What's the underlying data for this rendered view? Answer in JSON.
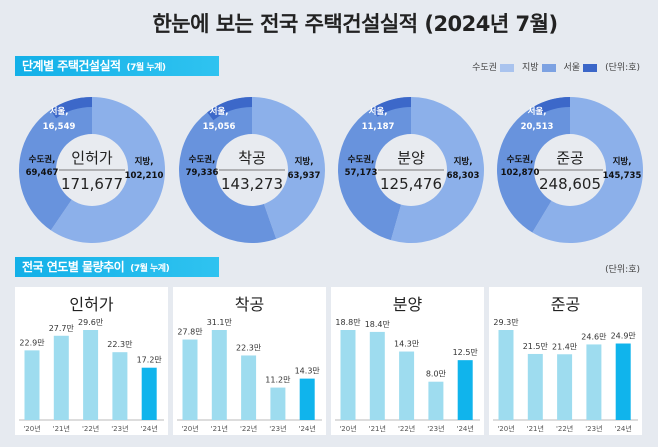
{
  "title": "한눈에 보는 전국 주택건설실적  (2024년 7월)",
  "section1": {
    "label": "단계별 주택건설실적",
    "note": "(7월 누계)"
  },
  "legend": {
    "items": [
      {
        "label": "수도권",
        "color": "#a9c3ee"
      },
      {
        "label": "지방",
        "color": "#7da2e2"
      },
      {
        "label": "서울",
        "color": "#3b66c8"
      }
    ],
    "unit": "(단위:호)"
  },
  "section2": {
    "label": "전국 연도별 물량추이",
    "note": "(7월 누계)",
    "unit": "(단위:호)"
  },
  "colors": {
    "jibang": "#8cb0ea",
    "sudo": "#6893dd",
    "seoul": "#3c68c9",
    "bar": "#9edcef",
    "bar_current": "#10b4ec"
  },
  "chart_data": [
    {
      "type": "pie",
      "variant": "donut",
      "title": "인허가",
      "total": "171,677",
      "slices": [
        {
          "label": "지방,",
          "value": 102210,
          "text": "102,210"
        },
        {
          "label": "수도권,",
          "value": 69467,
          "text": "69,467"
        }
      ],
      "sub_slice": {
        "label": "서울,",
        "value": 16549,
        "text": "16,549",
        "within": "수도권"
      }
    },
    {
      "type": "pie",
      "variant": "donut",
      "title": "착공",
      "total": "143,273",
      "slices": [
        {
          "label": "지방,",
          "value": 63937,
          "text": "63,937"
        },
        {
          "label": "수도권,",
          "value": 79336,
          "text": "79,336"
        }
      ],
      "sub_slice": {
        "label": "서울,",
        "value": 15056,
        "text": "15,056",
        "within": "수도권"
      }
    },
    {
      "type": "pie",
      "variant": "donut",
      "title": "분양",
      "total": "125,476",
      "slices": [
        {
          "label": "지방,",
          "value": 68303,
          "text": "68,303"
        },
        {
          "label": "수도권,",
          "value": 57173,
          "text": "57,173"
        }
      ],
      "sub_slice": {
        "label": "서울,",
        "value": 11187,
        "text": "11,187",
        "within": "수도권"
      }
    },
    {
      "type": "pie",
      "variant": "donut",
      "title": "준공",
      "total": "248,605",
      "slices": [
        {
          "label": "지방,",
          "value": 145735,
          "text": "145,735"
        },
        {
          "label": "수도권,",
          "value": 102870,
          "text": "102,870"
        }
      ],
      "sub_slice": {
        "label": "서울,",
        "value": 20513,
        "text": "20,513",
        "within": "수도권"
      }
    },
    {
      "type": "bar",
      "title": "인허가",
      "categories": [
        "'20년",
        "'21년",
        "'22년",
        "'23년",
        "'24년"
      ],
      "values": [
        22.9,
        27.7,
        29.6,
        22.3,
        17.2
      ],
      "labels": [
        "22.9만",
        "27.7만",
        "29.6만",
        "22.3만",
        "17.2만"
      ]
    },
    {
      "type": "bar",
      "title": "착공",
      "categories": [
        "'20년",
        "'21년",
        "'22년",
        "'23년",
        "'24년"
      ],
      "values": [
        27.8,
        31.1,
        22.3,
        11.2,
        14.3
      ],
      "labels": [
        "27.8만",
        "31.1만",
        "22.3만",
        "11.2만",
        "14.3만"
      ]
    },
    {
      "type": "bar",
      "title": "분양",
      "categories": [
        "'20년",
        "'21년",
        "'22년",
        "'23년",
        "'24년"
      ],
      "values": [
        18.8,
        18.4,
        14.3,
        8.0,
        12.5
      ],
      "labels": [
        "18.8만",
        "18.4만",
        "14.3만",
        "8.0만",
        "12.5만"
      ]
    },
    {
      "type": "bar",
      "title": "준공",
      "categories": [
        "'20년",
        "'21년",
        "'22년",
        "'23년",
        "'24년"
      ],
      "values": [
        29.3,
        21.5,
        21.4,
        24.6,
        24.9
      ],
      "labels": [
        "29.3만",
        "21.5만",
        "21.4만",
        "24.6만",
        "24.9만"
      ]
    }
  ]
}
